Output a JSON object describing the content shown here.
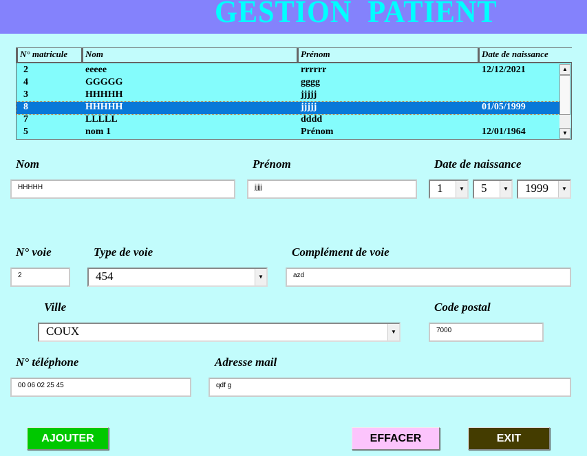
{
  "header": {
    "title": "GESTION  PATIENT"
  },
  "grid": {
    "columns": [
      "N° matricule",
      "Nom",
      "Prénom",
      "Date de naissance"
    ],
    "rows": [
      {
        "id": "2",
        "nom": "eeeee",
        "prenom": "rrrrrr",
        "date": "12/12/2021"
      },
      {
        "id": "4",
        "nom": "GGGGG",
        "prenom": "gggg",
        "date": ""
      },
      {
        "id": "3",
        "nom": "HHHHH",
        "prenom": "jjjjj",
        "date": ""
      },
      {
        "id": "8",
        "nom": "HHHHH",
        "prenom": "jjjjj",
        "date": "01/05/1999"
      },
      {
        "id": "7",
        "nom": "LLLLL",
        "prenom": "dddd",
        "date": ""
      },
      {
        "id": "5",
        "nom": "nom 1",
        "prenom": "Prénom",
        "date": "12/01/1964"
      }
    ],
    "selected_index": 3
  },
  "form": {
    "nom_label": "Nom",
    "nom": "HHHHH",
    "prenom_label": "Prénom",
    "prenom": "jjjjj",
    "date_label": "Date de naissance",
    "day": "1",
    "month": "5",
    "year": "1999",
    "voie_label": "N° voie",
    "voie": "2",
    "type_label": "Type de voie",
    "type": "454",
    "complement_label": "Complément de voie",
    "complement": "azd",
    "ville_label": "Ville",
    "ville": "COUX",
    "cp_label": "Code postal",
    "cp": "7000",
    "tel_label": "N° téléphone",
    "tel": "00 06 02 25 45",
    "mail_label": "Adresse mail",
    "mail": "qdf g"
  },
  "buttons": {
    "add": "AJOUTER",
    "clear": "EFFACER",
    "exit": "EXIT"
  },
  "colors": {
    "header": "#8482fc",
    "title": "#00ffff",
    "add": "#00c800",
    "clear": "#fcc4fc",
    "exit": "#443c00",
    "selection": "#0878d8"
  }
}
